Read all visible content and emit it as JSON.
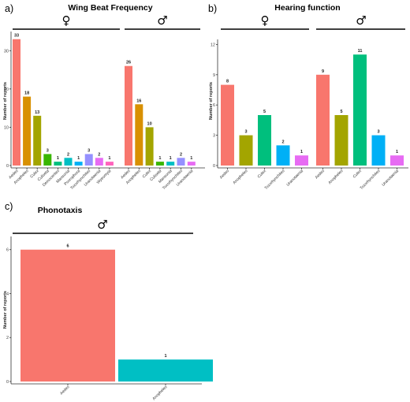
{
  "chart_data": [
    {
      "panel_label": "a)",
      "type": "bar",
      "title": "Wing Beat Frequency",
      "ylabel": "Number of reports",
      "ylim": [
        0,
        35
      ],
      "yticks": [
        0,
        10,
        20,
        30
      ],
      "groups": [
        {
          "symbol": "♀",
          "categories": [
            "Aedes",
            "Anopheles",
            "Culex",
            "Culiseta",
            "Deinocerites",
            "Mansonia",
            "Psorophora",
            "Toxorhynchites",
            "Uranotaenia",
            "Wyeomyia"
          ],
          "values": [
            33,
            18,
            13,
            3,
            1,
            2,
            1,
            3,
            2,
            1
          ]
        },
        {
          "symbol": "♂",
          "categories": [
            "Aedes",
            "Anopheles",
            "Culex",
            "Culiseta",
            "Mansonia",
            "Toxorhynchites",
            "Uranotaenia"
          ],
          "values": [
            26,
            16,
            10,
            1,
            1,
            2,
            1
          ]
        }
      ]
    },
    {
      "panel_label": "b)",
      "type": "bar",
      "title": "Hearing function",
      "ylabel": "Number of reports",
      "ylim": [
        0,
        12.5
      ],
      "yticks": [
        0,
        3,
        6,
        9,
        12
      ],
      "groups": [
        {
          "symbol": "♀",
          "categories": [
            "Aedes",
            "Anopheles",
            "Culex",
            "Toxorhynchites",
            "Uranotaenia"
          ],
          "values": [
            8,
            3,
            5,
            2,
            1
          ]
        },
        {
          "symbol": "♂",
          "categories": [
            "Aedes",
            "Anopheles",
            "Culex",
            "Toxorhynchites",
            "Uranotaenia"
          ],
          "values": [
            9,
            5,
            11,
            3,
            1
          ]
        }
      ]
    },
    {
      "panel_label": "c)",
      "type": "bar",
      "title": "Phonotaxis",
      "ylabel": "Number of reports",
      "ylim": [
        0,
        6.6
      ],
      "yticks": [
        0,
        2,
        4,
        6
      ],
      "groups": [
        {
          "symbol": "♂",
          "categories": [
            "Aedes",
            "Anopheles"
          ],
          "values": [
            6,
            1
          ]
        }
      ]
    }
  ],
  "colors": {
    "Aedes": "#F8766D",
    "Anopheles": "#D89000",
    "Culex": "#A3A500",
    "Culiseta": "#39B600",
    "Deinocerites": "#00BF7D",
    "Mansonia": "#00BFC4",
    "Psorophora": "#00B0F6",
    "Toxorhynchites": "#9590FF",
    "Uranotaenia": "#E76BF3",
    "Wyeomyia": "#FF62BC",
    "b_Aedes": "#F8766D",
    "b_Anopheles": "#A3A500",
    "b_Culex": "#00BF7D",
    "b_Toxorhynchites": "#00B0F6",
    "b_Uranotaenia": "#E76BF3",
    "c_Aedes": "#F8766D",
    "c_Anopheles": "#00BFC4"
  }
}
